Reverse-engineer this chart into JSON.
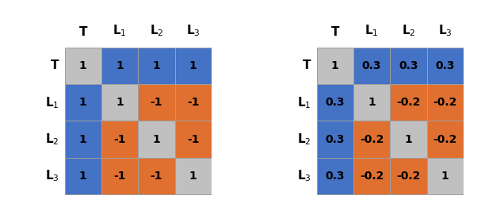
{
  "matrix1": [
    [
      1,
      1,
      1,
      1
    ],
    [
      1,
      1,
      -1,
      -1
    ],
    [
      1,
      -1,
      1,
      -1
    ],
    [
      1,
      -1,
      -1,
      1
    ]
  ],
  "matrix2": [
    [
      1,
      0.3,
      0.3,
      0.3
    ],
    [
      0.3,
      1,
      -0.2,
      -0.2
    ],
    [
      0.3,
      -0.2,
      1,
      -0.2
    ],
    [
      0.3,
      -0.2,
      -0.2,
      1
    ]
  ],
  "row_labels": [
    "T",
    "L$_1$",
    "L$_2$",
    "L$_3$"
  ],
  "col_labels": [
    "T",
    "L$_1$",
    "L$_2$",
    "L$_3$"
  ],
  "colors1": [
    [
      "#C0C0C0",
      "#4472C4",
      "#4472C4",
      "#4472C4"
    ],
    [
      "#4472C4",
      "#C0C0C0",
      "#E07030",
      "#E07030"
    ],
    [
      "#4472C4",
      "#E07030",
      "#C0C0C0",
      "#E07030"
    ],
    [
      "#4472C4",
      "#E07030",
      "#E07030",
      "#C0C0C0"
    ]
  ],
  "colors2": [
    [
      "#C0C0C0",
      "#4472C4",
      "#4472C4",
      "#4472C4"
    ],
    [
      "#4472C4",
      "#C0C0C0",
      "#E07030",
      "#E07030"
    ],
    [
      "#4472C4",
      "#E07030",
      "#C0C0C0",
      "#E07030"
    ],
    [
      "#4472C4",
      "#E07030",
      "#E07030",
      "#C0C0C0"
    ]
  ],
  "color_line": "#A0A0A0",
  "text_color": "black",
  "font_size_label": 11,
  "font_size_cell": 10,
  "font_size_header": 11,
  "fig_width": 6.36,
  "fig_height": 2.66,
  "dpi": 100
}
